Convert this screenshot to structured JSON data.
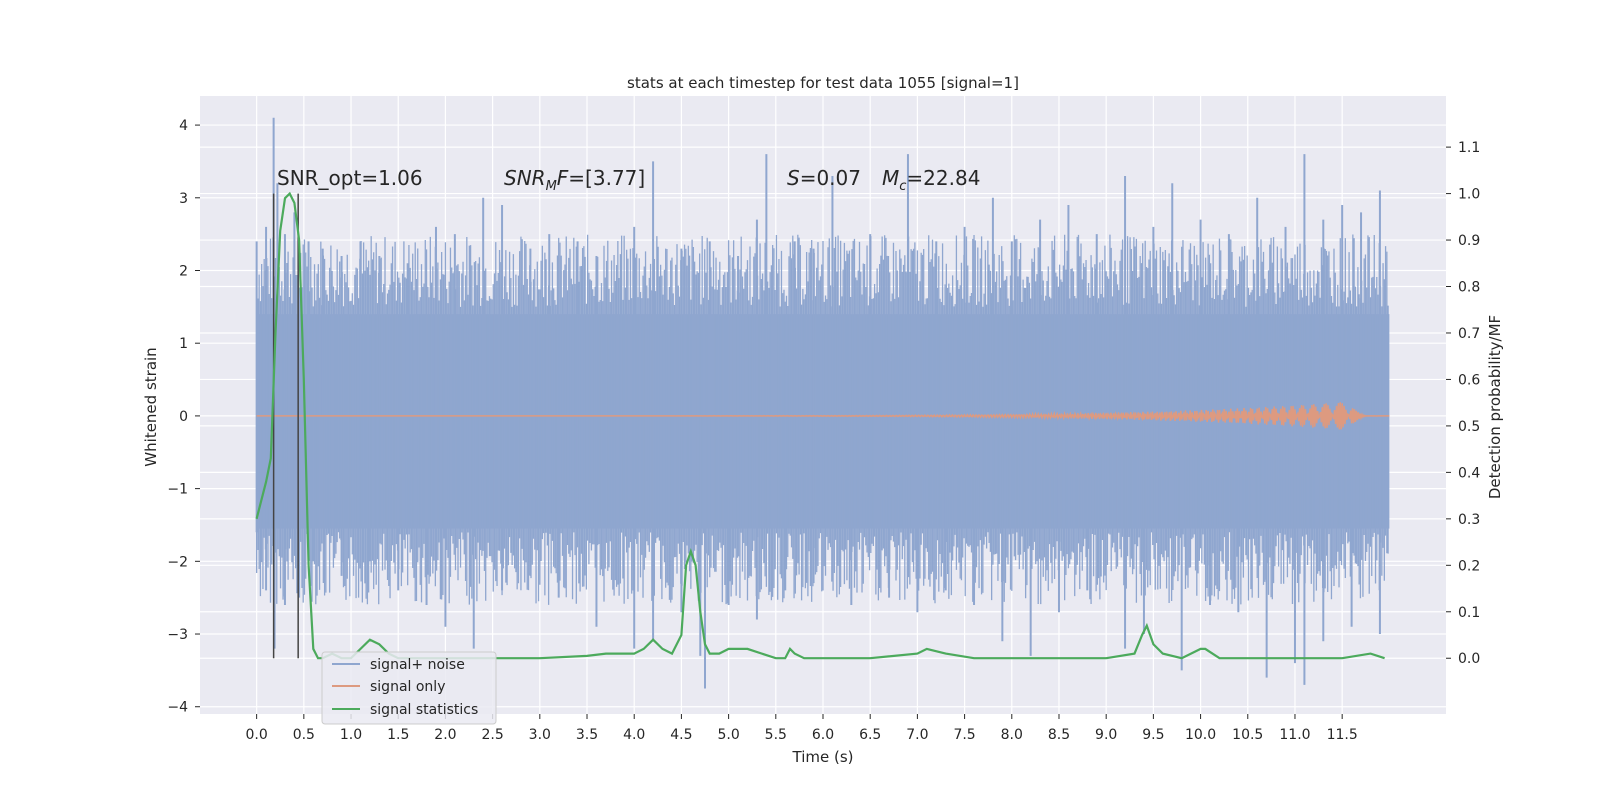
{
  "chart_data": {
    "type": "line",
    "title": "stats at each timestep for test data 1055 [signal=1]",
    "xlabel": "Time (s)",
    "ylabel": "Whitened strain",
    "y2label": "Detection probability/MF",
    "xlim": [
      -0.6,
      12.6
    ],
    "ylim": [
      -4.1,
      4.4
    ],
    "y2lim": [
      -0.12,
      1.21
    ],
    "xticks": [
      "0.0",
      "0.5",
      "1.0",
      "1.5",
      "2.0",
      "2.5",
      "3.0",
      "3.5",
      "4.0",
      "4.5",
      "5.0",
      "5.5",
      "6.0",
      "6.5",
      "7.0",
      "7.5",
      "8.0",
      "8.5",
      "9.0",
      "9.5",
      "10.0",
      "10.5",
      "11.0",
      "11.5"
    ],
    "yticks": [
      "4",
      "3",
      "2",
      "1",
      "0",
      "−1",
      "−2",
      "−3",
      "−4"
    ],
    "y2ticks": [
      "1.1",
      "1.0",
      "0.9",
      "0.8",
      "0.7",
      "0.6",
      "0.5",
      "0.4",
      "0.3",
      "0.2",
      "0.1",
      "0.0"
    ],
    "grid": true,
    "legend_placement": "lower-left",
    "annotations": {
      "snr_opt": "SNR_opt=1.06",
      "snr_mf": "=[3.77]",
      "snr_mf_main": "SNR",
      "snr_mf_sub": "M",
      "snr_mf_tail": "F",
      "s_stat": "=0.07",
      "s_symbol": "S",
      "mc_symbol": "M",
      "mc_sub": "c",
      "mc_value": "=22.84"
    },
    "vlines": [
      0.18,
      0.44
    ],
    "noise_band": {
      "x_start": 0.0,
      "x_end": 12.0,
      "lower": -1.55,
      "upper": 1.4
    },
    "series": [
      {
        "name": "signal+ noise",
        "color": "#8fa6cf",
        "spikes_top": [
          [
            0.0,
            2.4
          ],
          [
            0.1,
            2.6
          ],
          [
            0.18,
            4.1
          ],
          [
            0.22,
            3.2
          ],
          [
            0.3,
            2.5
          ],
          [
            0.4,
            2.8
          ],
          [
            0.55,
            2.4
          ],
          [
            0.7,
            2.3
          ],
          [
            0.9,
            2.2
          ],
          [
            1.1,
            2.4
          ],
          [
            1.3,
            2.2
          ],
          [
            1.6,
            2.1
          ],
          [
            1.9,
            2.6
          ],
          [
            2.1,
            2.5
          ],
          [
            2.4,
            3.0
          ],
          [
            2.6,
            2.9
          ],
          [
            2.9,
            2.3
          ],
          [
            3.1,
            2.5
          ],
          [
            3.4,
            2.4
          ],
          [
            3.6,
            2.2
          ],
          [
            4.0,
            2.6
          ],
          [
            4.2,
            3.5
          ],
          [
            4.5,
            2.3
          ],
          [
            4.8,
            2.4
          ],
          [
            5.1,
            2.2
          ],
          [
            5.3,
            2.7
          ],
          [
            5.4,
            3.6
          ],
          [
            5.7,
            2.4
          ],
          [
            5.9,
            2.3
          ],
          [
            6.1,
            3.3
          ],
          [
            6.5,
            2.5
          ],
          [
            6.9,
            3.6
          ],
          [
            7.2,
            2.4
          ],
          [
            7.5,
            2.6
          ],
          [
            7.8,
            3.0
          ],
          [
            8.0,
            2.4
          ],
          [
            8.3,
            2.7
          ],
          [
            8.6,
            2.9
          ],
          [
            8.9,
            2.5
          ],
          [
            9.2,
            3.3
          ],
          [
            9.5,
            2.6
          ],
          [
            9.7,
            3.2
          ],
          [
            10.0,
            2.7
          ],
          [
            10.3,
            2.5
          ],
          [
            10.6,
            3.0
          ],
          [
            10.9,
            2.6
          ],
          [
            11.1,
            3.6
          ],
          [
            11.3,
            2.7
          ],
          [
            11.5,
            2.9
          ],
          [
            11.7,
            2.8
          ],
          [
            11.9,
            3.1
          ]
        ],
        "spikes_bottom": [
          [
            0.0,
            -1.6
          ],
          [
            0.1,
            -2.4
          ],
          [
            0.19,
            -3.2
          ],
          [
            0.3,
            -2.6
          ],
          [
            0.45,
            -2.5
          ],
          [
            0.6,
            -2.0
          ],
          [
            0.9,
            -2.2
          ],
          [
            1.2,
            -2.0
          ],
          [
            1.5,
            -2.4
          ],
          [
            1.8,
            -2.6
          ],
          [
            2.0,
            -2.9
          ],
          [
            2.3,
            -3.2
          ],
          [
            2.6,
            -2.4
          ],
          [
            2.9,
            -2.2
          ],
          [
            3.2,
            -2.5
          ],
          [
            3.6,
            -2.9
          ],
          [
            4.0,
            -3.2
          ],
          [
            4.2,
            -3.1
          ],
          [
            4.5,
            -2.7
          ],
          [
            4.7,
            -3.3
          ],
          [
            4.75,
            -3.75
          ],
          [
            5.0,
            -2.6
          ],
          [
            5.3,
            -2.8
          ],
          [
            5.6,
            -2.4
          ],
          [
            5.9,
            -2.3
          ],
          [
            6.3,
            -2.6
          ],
          [
            6.7,
            -2.5
          ],
          [
            7.0,
            -2.7
          ],
          [
            7.3,
            -2.4
          ],
          [
            7.6,
            -2.6
          ],
          [
            7.9,
            -3.1
          ],
          [
            8.2,
            -3.3
          ],
          [
            8.5,
            -2.7
          ],
          [
            8.8,
            -2.4
          ],
          [
            9.2,
            -3.2
          ],
          [
            9.4,
            -3.0
          ],
          [
            9.8,
            -3.5
          ],
          [
            10.1,
            -2.6
          ],
          [
            10.4,
            -2.7
          ],
          [
            10.7,
            -3.6
          ],
          [
            11.0,
            -3.4
          ],
          [
            11.1,
            -3.7
          ],
          [
            11.3,
            -3.1
          ],
          [
            11.6,
            -2.9
          ],
          [
            11.9,
            -3.0
          ]
        ]
      },
      {
        "name": "signal only",
        "color": "#dd9a80",
        "chirp": {
          "x_start": 0.0,
          "x_end": 12.0,
          "peak_x": 11.6,
          "peak_amp": 0.2
        }
      },
      {
        "name": "signal statistics",
        "color": "#4caa5c",
        "x": [
          0.0,
          0.1,
          0.15,
          0.2,
          0.25,
          0.3,
          0.35,
          0.4,
          0.45,
          0.5,
          0.55,
          0.6,
          0.65,
          0.7,
          0.8,
          0.9,
          1.0,
          1.1,
          1.2,
          1.3,
          1.4,
          1.5,
          1.7,
          2.0,
          2.5,
          3.0,
          3.5,
          3.7,
          4.0,
          4.1,
          4.2,
          4.3,
          4.4,
          4.5,
          4.55,
          4.6,
          4.65,
          4.7,
          4.75,
          4.8,
          4.9,
          5.0,
          5.2,
          5.5,
          5.6,
          5.65,
          5.7,
          5.8,
          6.0,
          6.5,
          7.0,
          7.1,
          7.3,
          7.6,
          8.0,
          8.5,
          9.0,
          9.3,
          9.38,
          9.43,
          9.5,
          9.6,
          9.8,
          10.0,
          10.05,
          10.2,
          10.5,
          11.0,
          11.5,
          11.8,
          11.95
        ],
        "y": [
          0.3,
          0.38,
          0.43,
          0.7,
          0.92,
          0.99,
          1.0,
          0.98,
          0.9,
          0.6,
          0.2,
          0.02,
          0.0,
          0.0,
          0.01,
          0.0,
          0.0,
          0.02,
          0.04,
          0.03,
          0.01,
          0.0,
          0.0,
          0.0,
          0.0,
          0.0,
          0.005,
          0.01,
          0.01,
          0.02,
          0.04,
          0.02,
          0.01,
          0.05,
          0.2,
          0.23,
          0.2,
          0.1,
          0.03,
          0.01,
          0.01,
          0.02,
          0.02,
          0.0,
          0.0,
          0.02,
          0.01,
          0.0,
          0.0,
          0.0,
          0.01,
          0.02,
          0.01,
          0.0,
          0.0,
          0.0,
          0.0,
          0.01,
          0.05,
          0.07,
          0.03,
          0.01,
          0.0,
          0.02,
          0.02,
          0.0,
          0.0,
          0.0,
          0.0,
          0.01,
          0.0
        ]
      }
    ]
  }
}
